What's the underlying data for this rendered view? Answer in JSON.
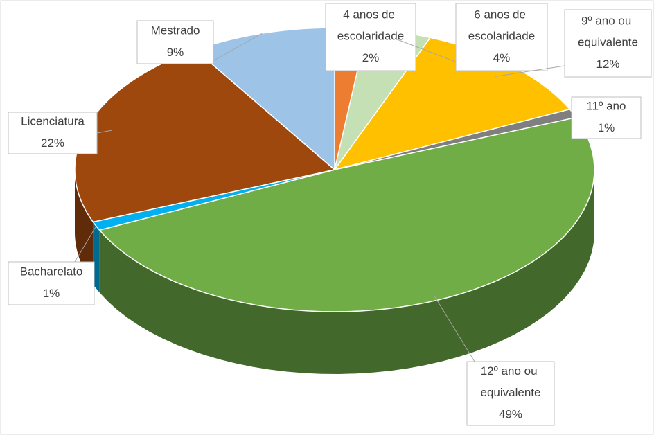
{
  "chart_data": {
    "type": "pie",
    "three_d": true,
    "categories": [
      "4 anos de escolaridade",
      "6 anos de escolaridade",
      "9º ano ou equivalente",
      "11º ano",
      "12º ano ou equivalente",
      "Bacharelato",
      "Licenciatura",
      "Mestrado"
    ],
    "values": [
      2,
      4,
      12,
      1,
      49,
      1,
      22,
      9
    ],
    "value_labels": [
      "2%",
      "4%",
      "12%",
      "1%",
      "49%",
      "1%",
      "22%",
      "9%"
    ],
    "colors": [
      "#ed7d31",
      "#c5e0b4",
      "#ffc000",
      "#7f7f7f",
      "#70ad47",
      "#00b0f0",
      "#9e480e",
      "#9dc3e6"
    ]
  }
}
